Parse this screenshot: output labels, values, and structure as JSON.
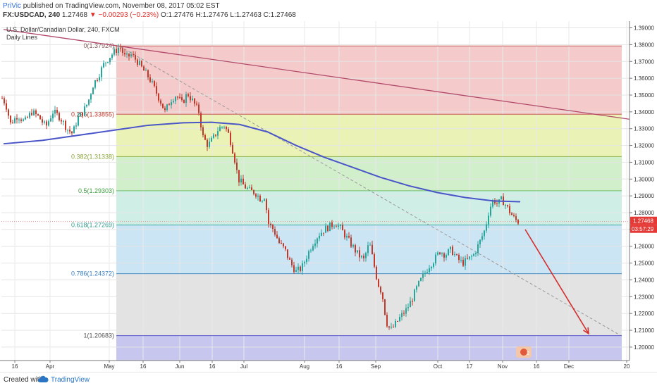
{
  "header": {
    "author": "PriVic",
    "published_text": "published on TradingView.com, November 08, 2017 05:02 EST",
    "symbol": "FX:USDCAD, 240",
    "last": "1.27468",
    "change": "−0.00293 (−0.23%)",
    "open_label": "O:",
    "open": "1.27476",
    "high_label": "H:",
    "high": "1.27476",
    "low_label": "L:",
    "low": "1.27463",
    "close_label": "C:",
    "close": "1.27468"
  },
  "legend": {
    "title": "U.S. Dollar/Canadian Dollar, 240, FXCM",
    "indicator": "Daily Lines"
  },
  "footer": {
    "created_with": "Created with",
    "brand": "TradingView"
  },
  "price_tag": {
    "price": "1.27468",
    "countdown": "03:57:29"
  },
  "colors": {
    "candle_up": "#26a69a",
    "candle_down": "#c0392b",
    "ma_line": "#4a55c8",
    "trend_line": "#b04a6a",
    "arrow": "#d32f2f",
    "fib_0": "#ef9a9a",
    "fib_0_236": "#f3c1c1",
    "fib_236_382": "#e6f1a8",
    "fib_382_5": "#c9ecc1",
    "fib_5_618": "#c7ece2",
    "fib_618_786": "#c3e0f3",
    "fib_786_1": "#dedede",
    "fib_below_1": "#c7c6ee"
  },
  "chart_data": {
    "type": "candlestick",
    "title": "U.S. Dollar/Canadian Dollar, 240, FXCM",
    "ylim": [
      1.192,
      1.394
    ],
    "y_ticks": [
      "1.39000",
      "1.38000",
      "1.37000",
      "1.36000",
      "1.35000",
      "1.34000",
      "1.33000",
      "1.32000",
      "1.31000",
      "1.30000",
      "1.29000",
      "1.28000",
      "1.27000",
      "1.26000",
      "1.25000",
      "1.24000",
      "1.23000",
      "1.22000",
      "1.21000",
      "1.20000"
    ],
    "x_tick_labels": [
      "16",
      "Apr",
      "May",
      "16",
      "Jun",
      "16",
      "Jul",
      "Aug",
      "16",
      "Sep",
      "Oct",
      "17",
      "Nov",
      "16",
      "Dec",
      "20"
    ],
    "fibonacci": [
      {
        "label": "0(1.37924)",
        "value": 1.37924
      },
      {
        "label": "0.236(1.33855)",
        "value": 1.33855
      },
      {
        "label": "0.382(1.31338)",
        "value": 1.31338
      },
      {
        "label": "0.5(1.29303)",
        "value": 1.29303
      },
      {
        "label": "0.618(1.27269)",
        "value": 1.27269
      },
      {
        "label": "0.786(1.24372)",
        "value": 1.24372
      },
      {
        "label": "1(1.20683)",
        "value": 1.20683
      }
    ],
    "price_path": [
      [
        0,
        1.35
      ],
      [
        8,
        1.345
      ],
      [
        15,
        1.333
      ],
      [
        25,
        1.338
      ],
      [
        35,
        1.334
      ],
      [
        45,
        1.34
      ],
      [
        55,
        1.337
      ],
      [
        65,
        1.331
      ],
      [
        75,
        1.34
      ],
      [
        85,
        1.337
      ],
      [
        95,
        1.33
      ],
      [
        103,
        1.327
      ],
      [
        110,
        1.336
      ],
      [
        118,
        1.34
      ],
      [
        125,
        1.346
      ],
      [
        132,
        1.356
      ],
      [
        140,
        1.362
      ],
      [
        148,
        1.369
      ],
      [
        156,
        1.373
      ],
      [
        163,
        1.376
      ],
      [
        170,
        1.379
      ],
      [
        178,
        1.372
      ],
      [
        186,
        1.374
      ],
      [
        195,
        1.37
      ],
      [
        203,
        1.365
      ],
      [
        212,
        1.36
      ],
      [
        220,
        1.353
      ],
      [
        228,
        1.346
      ],
      [
        234,
        1.34
      ],
      [
        242,
        1.347
      ],
      [
        250,
        1.35
      ],
      [
        258,
        1.345
      ],
      [
        266,
        1.351
      ],
      [
        274,
        1.346
      ],
      [
        282,
        1.34
      ],
      [
        288,
        1.325
      ],
      [
        295,
        1.32
      ],
      [
        302,
        1.324
      ],
      [
        310,
        1.33
      ],
      [
        318,
        1.332
      ],
      [
        325,
        1.326
      ],
      [
        332,
        1.314
      ],
      [
        338,
        1.3
      ],
      [
        346,
        1.296
      ],
      [
        354,
        1.293
      ],
      [
        362,
        1.292
      ],
      [
        370,
        1.288
      ],
      [
        376,
        1.29
      ],
      [
        380,
        1.274
      ],
      [
        388,
        1.27
      ],
      [
        396,
        1.262
      ],
      [
        404,
        1.258
      ],
      [
        412,
        1.25
      ],
      [
        420,
        1.245
      ],
      [
        428,
        1.247
      ],
      [
        436,
        1.255
      ],
      [
        444,
        1.262
      ],
      [
        452,
        1.267
      ],
      [
        460,
        1.27
      ],
      [
        468,
        1.272
      ],
      [
        476,
        1.274
      ],
      [
        484,
        1.27
      ],
      [
        492,
        1.265
      ],
      [
        500,
        1.26
      ],
      [
        508,
        1.255
      ],
      [
        516,
        1.252
      ],
      [
        524,
        1.262
      ],
      [
        530,
        1.25
      ],
      [
        536,
        1.238
      ],
      [
        542,
        1.232
      ],
      [
        548,
        1.215
      ],
      [
        554,
        1.21
      ],
      [
        560,
        1.213
      ],
      [
        568,
        1.218
      ],
      [
        576,
        1.222
      ],
      [
        584,
        1.228
      ],
      [
        592,
        1.236
      ],
      [
        600,
        1.242
      ],
      [
        608,
        1.248
      ],
      [
        616,
        1.252
      ],
      [
        624,
        1.257
      ],
      [
        632,
        1.255
      ],
      [
        640,
        1.258
      ],
      [
        648,
        1.253
      ],
      [
        656,
        1.25
      ],
      [
        664,
        1.252
      ],
      [
        672,
        1.255
      ],
      [
        680,
        1.262
      ],
      [
        688,
        1.27
      ],
      [
        694,
        1.282
      ],
      [
        700,
        1.288
      ],
      [
        706,
        1.285
      ],
      [
        712,
        1.288
      ],
      [
        718,
        1.284
      ],
      [
        724,
        1.28
      ],
      [
        730,
        1.276
      ],
      [
        735,
        1.2747
      ]
    ],
    "moving_average": [
      [
        5,
        1.321
      ],
      [
        60,
        1.323
      ],
      [
        110,
        1.326
      ],
      [
        160,
        1.329
      ],
      [
        210,
        1.332
      ],
      [
        260,
        1.3335
      ],
      [
        300,
        1.3338
      ],
      [
        340,
        1.3325
      ],
      [
        380,
        1.328
      ],
      [
        420,
        1.32
      ],
      [
        460,
        1.313
      ],
      [
        500,
        1.307
      ],
      [
        540,
        1.301
      ],
      [
        580,
        1.296
      ],
      [
        620,
        1.292
      ],
      [
        660,
        1.289
      ],
      [
        700,
        1.287
      ],
      [
        738,
        1.2865
      ]
    ],
    "trend_line": [
      [
        5,
        1.389
      ],
      [
        895,
        1.3355
      ]
    ],
    "dashed_line": [
      [
        170,
        1.379
      ],
      [
        880,
        1.207
      ]
    ],
    "arrow": [
      [
        745,
        1.27
      ],
      [
        835,
        1.208
      ]
    ]
  }
}
